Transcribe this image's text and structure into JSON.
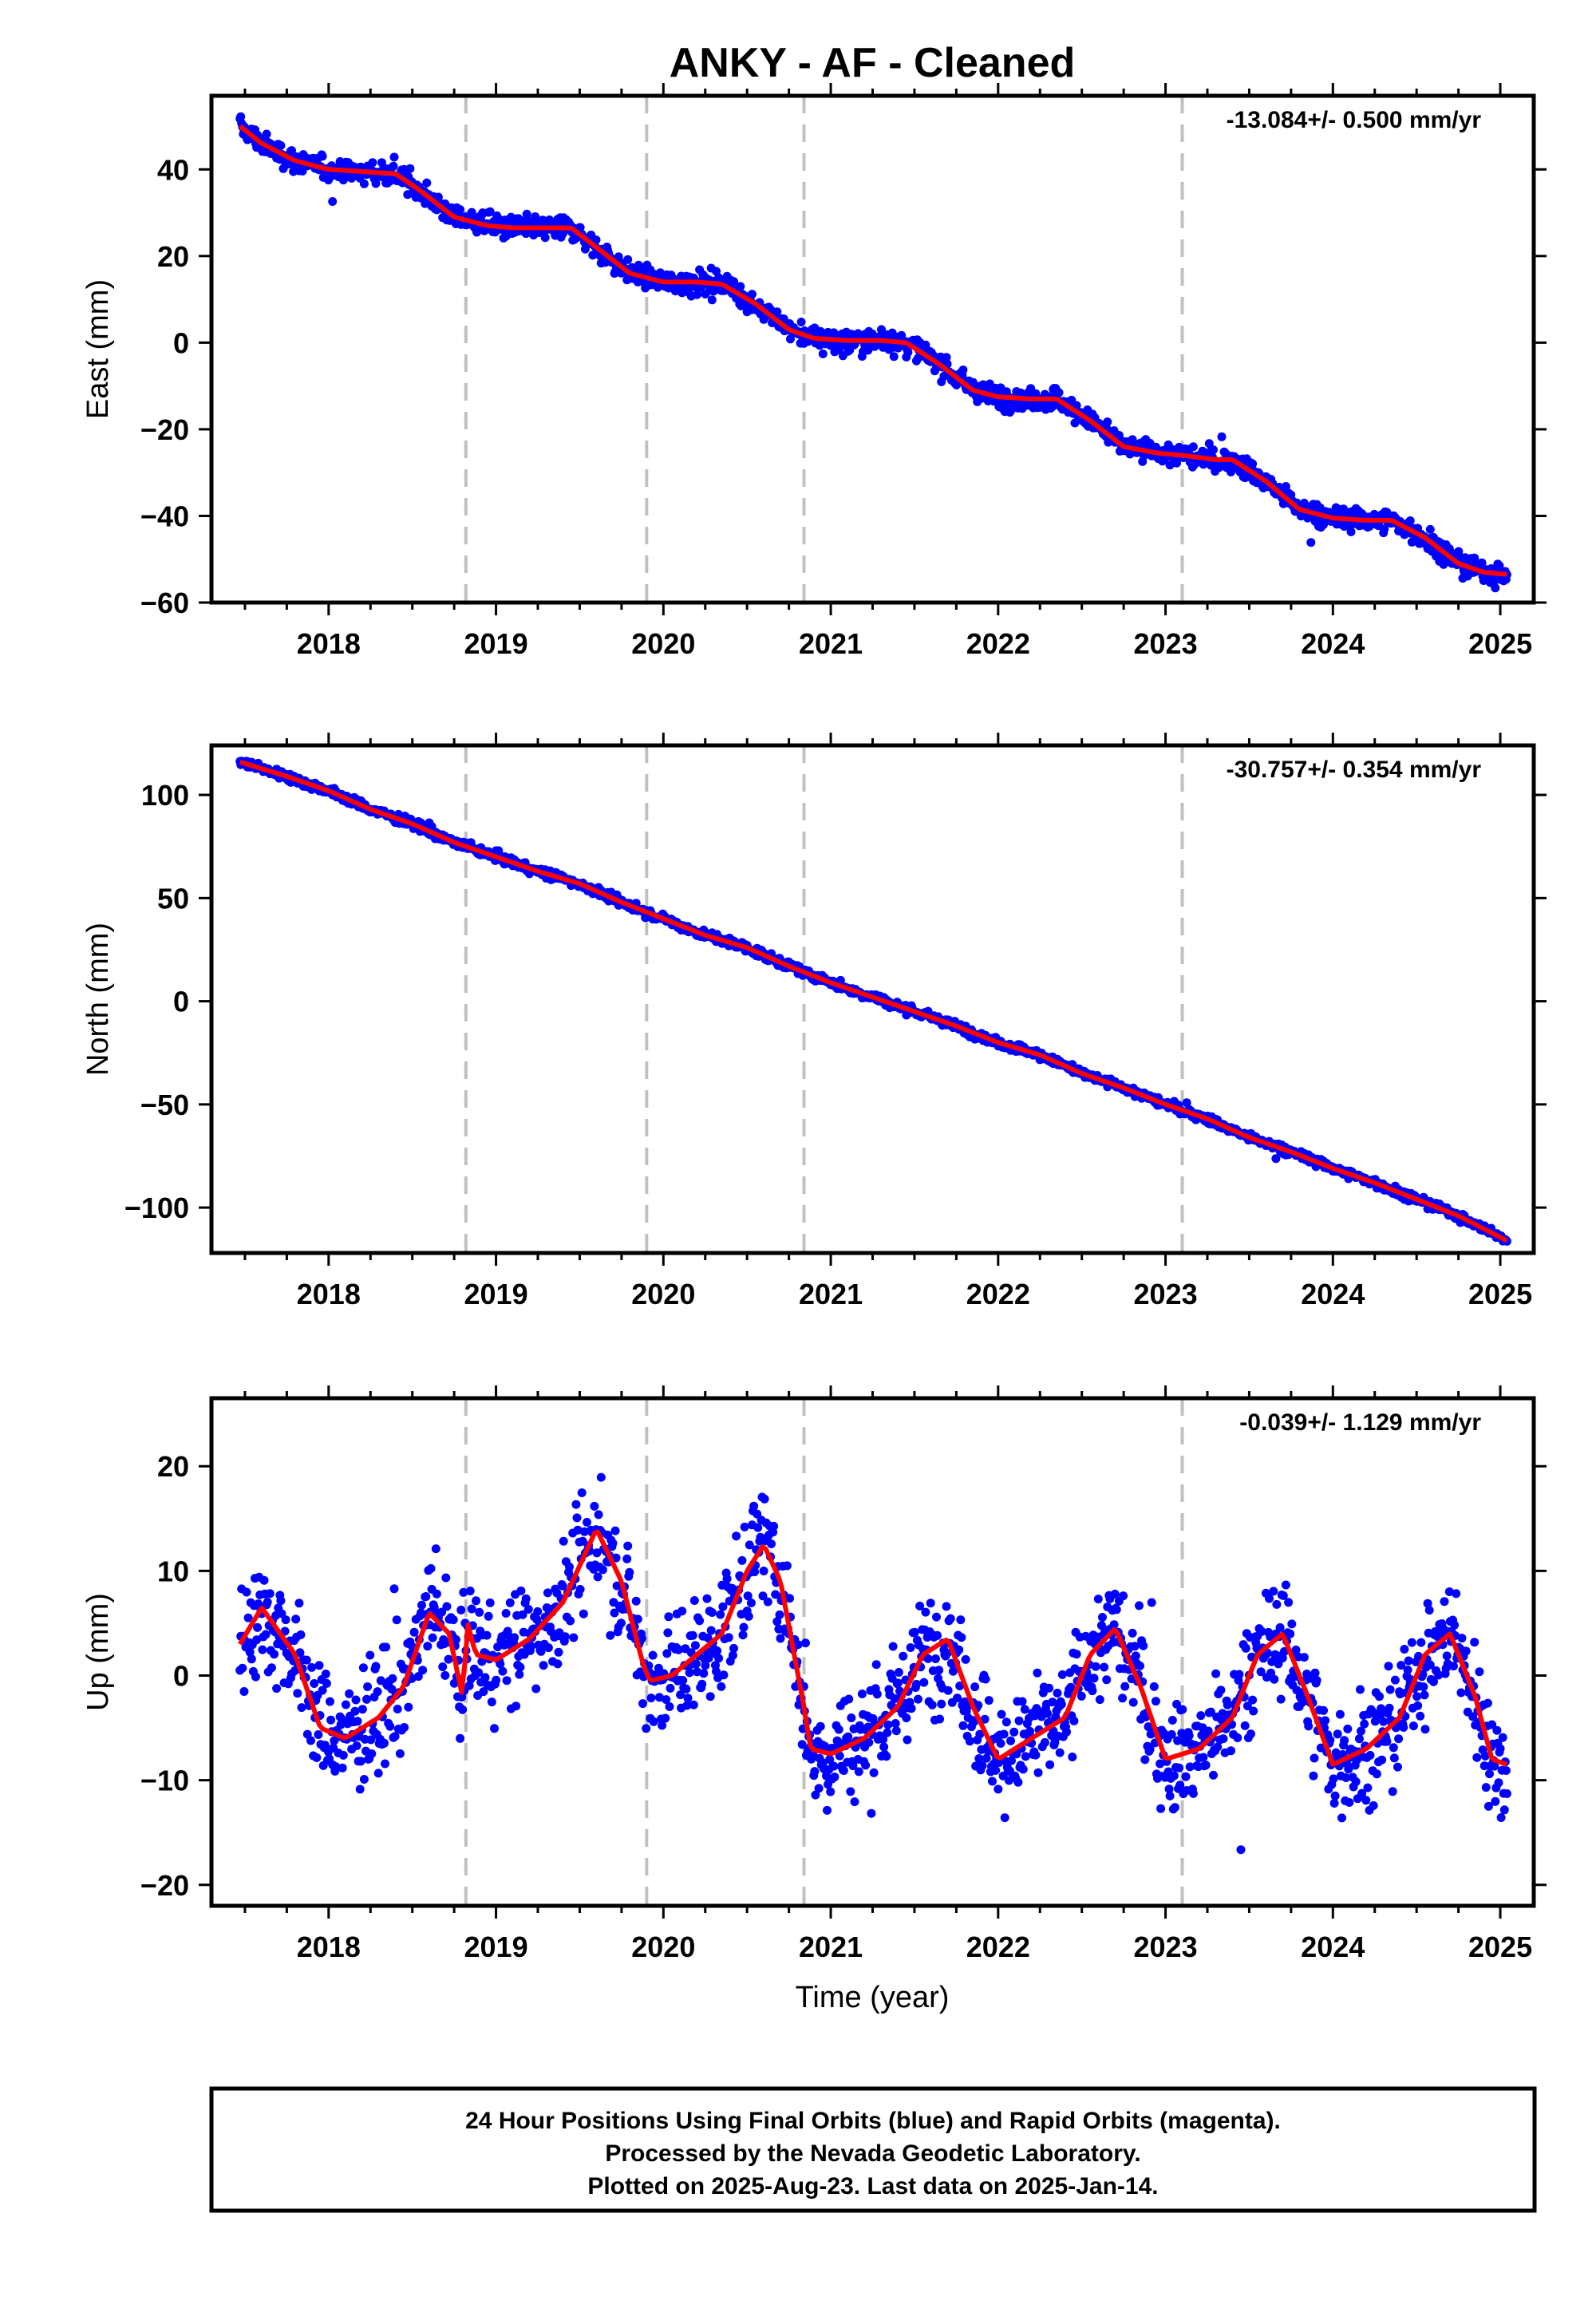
{
  "title": "ANKY  - AF - Cleaned",
  "x_axis_label": "Time (year)",
  "footer": {
    "line1": "24 Hour Positions Using Final Orbits (blue) and Rapid Orbits (magenta).",
    "line2": "Processed by the Nevada Geodetic Laboratory.",
    "line3": "Plotted on 2025-Aug-23. Last data on 2025-Jan-14."
  },
  "colors": {
    "observations": "#0000ff",
    "model_fit": "#ff0000",
    "event_lines": "#c0c0c0",
    "frame": "#000000"
  },
  "chart_data": [
    {
      "type": "scatter",
      "component": "East",
      "ylabel": "East (mm)",
      "rate_annotation": "-13.084+/- 0.500 mm/yr",
      "xlim": [
        2017.3,
        2025.2
      ],
      "ylim": [
        -60,
        57
      ],
      "x_ticks": [
        2018,
        2019,
        2020,
        2021,
        2022,
        2023,
        2024,
        2025
      ],
      "y_ticks": [
        -60,
        -40,
        -20,
        0,
        20,
        40
      ],
      "grid": false,
      "event_lines_x": [
        2018.82,
        2019.9,
        2020.84,
        2023.1
      ],
      "data_start": 2017.47,
      "data_end": 2025.04,
      "noise_mm": 1.8,
      "series": [
        {
          "name": "Final Orbits (blue)",
          "kind": "daily-points"
        },
        {
          "kind": "model-fit",
          "x": [
            2017.47,
            2017.6,
            2017.8,
            2018.0,
            2018.2,
            2018.4,
            2018.55,
            2018.75,
            2018.95,
            2019.1,
            2019.3,
            2019.45,
            2019.6,
            2019.8,
            2020.0,
            2020.2,
            2020.35,
            2020.55,
            2020.75,
            2020.9,
            2021.1,
            2021.3,
            2021.45,
            2021.65,
            2021.85,
            2022.0,
            2022.2,
            2022.35,
            2022.55,
            2022.75,
            2022.95,
            2023.1,
            2023.3,
            2023.4,
            2023.6,
            2023.8,
            2024.0,
            2024.2,
            2024.35,
            2024.55,
            2024.75,
            2024.9,
            2025.04
          ],
          "y": [
            50,
            46,
            42,
            40,
            39.5,
            39,
            35,
            29,
            27,
            26.5,
            26.5,
            26.5,
            22,
            16,
            14,
            14,
            13.5,
            9,
            3,
            1,
            0.5,
            0.5,
            0,
            -5,
            -11,
            -12.5,
            -13,
            -13,
            -18,
            -24,
            -25.5,
            -26,
            -27,
            -27,
            -32,
            -38.5,
            -40.5,
            -41,
            -41,
            -45,
            -51,
            -53,
            -53.5
          ]
        }
      ]
    },
    {
      "type": "scatter",
      "component": "North",
      "ylabel": "North (mm)",
      "rate_annotation": "-30.757+/- 0.354 mm/yr",
      "xlim": [
        2017.3,
        2025.2
      ],
      "ylim": [
        -122,
        124
      ],
      "x_ticks": [
        2018,
        2019,
        2020,
        2021,
        2022,
        2023,
        2024,
        2025
      ],
      "y_ticks": [
        -100,
        -50,
        0,
        50,
        100
      ],
      "grid": false,
      "event_lines_x": [
        2018.82,
        2019.9,
        2020.84,
        2023.1
      ],
      "data_start": 2017.47,
      "data_end": 2025.04,
      "noise_mm": 1.5,
      "series": [
        {
          "name": "Final Orbits (blue)",
          "kind": "daily-points"
        },
        {
          "kind": "model-fit",
          "x": [
            2017.47,
            2017.75,
            2018.0,
            2018.25,
            2018.5,
            2018.75,
            2019.0,
            2019.25,
            2019.5,
            2019.75,
            2020.0,
            2020.25,
            2020.5,
            2020.75,
            2021.0,
            2021.25,
            2021.5,
            2021.75,
            2022.0,
            2022.25,
            2022.5,
            2022.75,
            2023.0,
            2023.25,
            2023.5,
            2023.75,
            2024.0,
            2024.25,
            2024.5,
            2024.75,
            2025.04
          ],
          "y": [
            116,
            109,
            102,
            93,
            86,
            77,
            70,
            63,
            57,
            48,
            40,
            32,
            26,
            17,
            9,
            2,
            -5,
            -12,
            -20,
            -26,
            -35,
            -42,
            -50,
            -57,
            -66,
            -73,
            -81,
            -88,
            -96,
            -104,
            -116
          ]
        }
      ]
    },
    {
      "type": "scatter",
      "component": "Up",
      "ylabel": "Up (mm)",
      "rate_annotation": "-0.039+/- 1.129 mm/yr",
      "xlim": [
        2017.3,
        2025.2
      ],
      "ylim": [
        -22,
        26.5
      ],
      "x_ticks": [
        2018,
        2019,
        2020,
        2021,
        2022,
        2023,
        2024,
        2025
      ],
      "y_ticks": [
        -20,
        -10,
        0,
        10,
        20
      ],
      "grid": false,
      "event_lines_x": [
        2018.82,
        2019.9,
        2020.84,
        2023.1
      ],
      "data_start": 2017.47,
      "data_end": 2025.04,
      "noise_mm": 3.8,
      "series": [
        {
          "name": "Final Orbits (blue)",
          "kind": "daily-points"
        },
        {
          "kind": "model-fit",
          "x": [
            2017.47,
            2017.6,
            2017.8,
            2017.95,
            2018.1,
            2018.3,
            2018.45,
            2018.6,
            2018.72,
            2018.8,
            2018.83,
            2018.88,
            2019.0,
            2019.2,
            2019.4,
            2019.6,
            2019.75,
            2019.88,
            2019.92,
            2020.05,
            2020.2,
            2020.35,
            2020.5,
            2020.6,
            2020.7,
            2020.84,
            2020.88,
            2021.0,
            2021.2,
            2021.4,
            2021.55,
            2021.7,
            2021.85,
            2022.0,
            2022.2,
            2022.4,
            2022.55,
            2022.7,
            2022.85,
            2023.0,
            2023.2,
            2023.4,
            2023.55,
            2023.7,
            2023.85,
            2024.0,
            2024.2,
            2024.4,
            2024.55,
            2024.7,
            2024.85,
            2024.95,
            2025.04
          ],
          "y": [
            3,
            6.5,
            2,
            -5,
            -6,
            -4,
            -1,
            6,
            4,
            -2,
            5,
            2,
            1.5,
            3.5,
            7,
            14,
            9,
            1,
            -0.5,
            0,
            2,
            4,
            10,
            12.5,
            9,
            -3,
            -7,
            -7.5,
            -6,
            -3,
            2,
            3.5,
            -3,
            -8,
            -6,
            -4,
            2,
            4.5,
            -1,
            -8,
            -7,
            -4,
            2,
            4,
            -2,
            -8.5,
            -7,
            -4,
            2,
            4,
            -2,
            -8,
            -8.5
          ]
        }
      ]
    }
  ]
}
